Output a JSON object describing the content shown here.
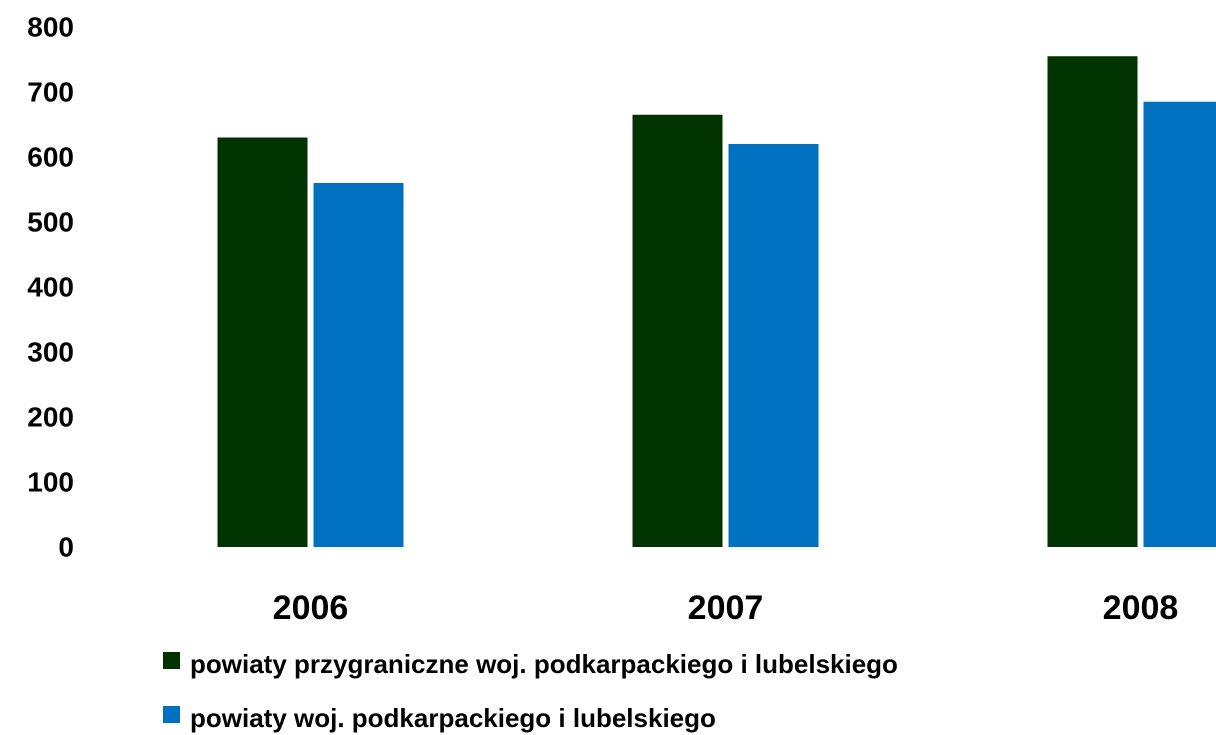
{
  "chart_data": {
    "type": "bar",
    "categories": [
      "2006",
      "2007",
      "2008"
    ],
    "series": [
      {
        "name": "powiaty przygraniczne  woj. podkarpackiego  i lubelskiego",
        "color": "#003300",
        "values": [
          630,
          665,
          755
        ]
      },
      {
        "name": "powiaty woj. podkarpackiego  i lubelskiego",
        "color": "#0070c0",
        "values": [
          560,
          620,
          685
        ]
      }
    ],
    "ylim": [
      0,
      800
    ],
    "yticks": [
      0,
      100,
      200,
      300,
      400,
      500,
      600,
      700,
      800
    ],
    "grid": false,
    "legend": "bottom"
  }
}
